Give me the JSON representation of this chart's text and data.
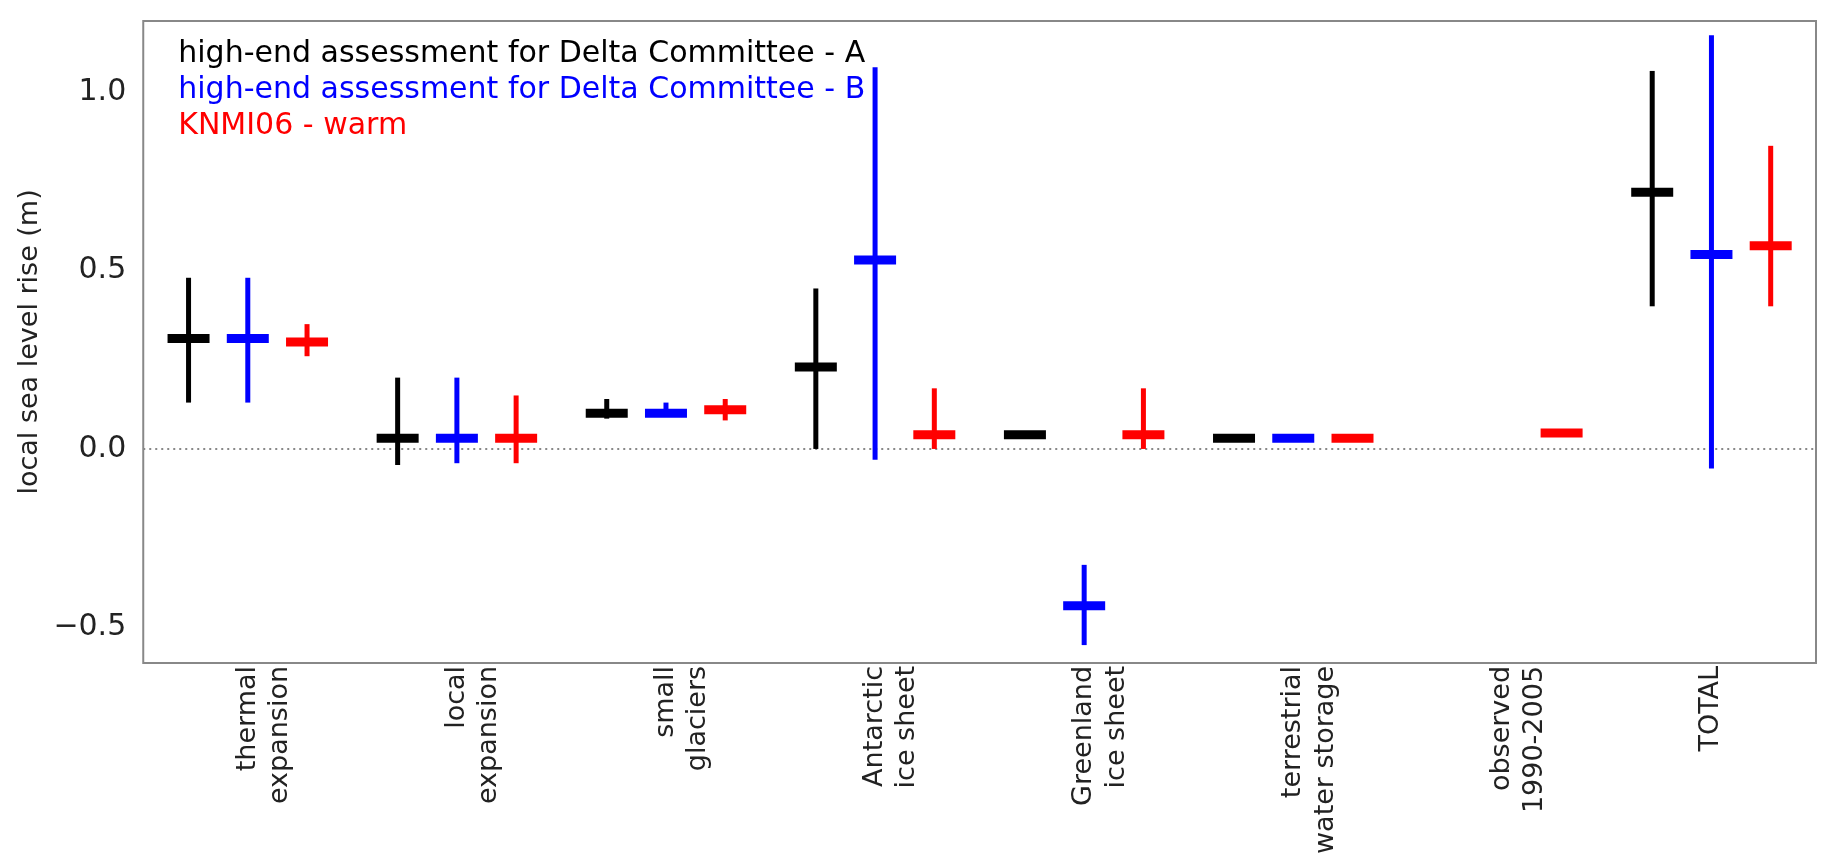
{
  "chart_data": {
    "type": "box",
    "ylabel": "local sea level rise (m)",
    "categories": [
      "thermal expansion",
      "local expansion",
      "small glaciers",
      "Antarctic ice sheet",
      "Greenland ice sheet",
      "terrestrial water storage",
      "observed 1990-2005",
      "TOTAL"
    ],
    "series": [
      {
        "name": "high-end assessment for Delta Committee - A",
        "color": "#000000",
        "boxes": [
          {
            "low": 0.13,
            "q1": 0.31,
            "median": 0.31,
            "q3": 0.31,
            "high": 0.48
          },
          {
            "low": -0.045,
            "q1": 0.03,
            "median": 0.03,
            "q3": 0.03,
            "high": 0.2
          },
          {
            "low": 0.085,
            "q1": 0.1,
            "median": 0.1,
            "q3": 0.1,
            "high": 0.14
          },
          {
            "low": 0.0,
            "q1": 0.23,
            "median": 0.23,
            "q3": 0.23,
            "high": 0.45
          },
          {
            "low": 0.04,
            "q1": 0.04,
            "median": 0.04,
            "q3": 0.04,
            "high": 0.04
          },
          {
            "low": 0.03,
            "q1": 0.03,
            "median": 0.03,
            "q3": 0.03,
            "high": 0.03
          },
          null,
          {
            "low": 0.4,
            "q1": 0.72,
            "median": 0.72,
            "q3": 0.72,
            "high": 1.06
          }
        ]
      },
      {
        "name": "high-end assessment for Delta Committee - B",
        "color": "#0000ff",
        "boxes": [
          {
            "low": 0.13,
            "q1": 0.31,
            "median": 0.31,
            "q3": 0.31,
            "high": 0.48
          },
          {
            "low": -0.04,
            "q1": 0.03,
            "median": 0.03,
            "q3": 0.03,
            "high": 0.2
          },
          {
            "low": 0.09,
            "q1": 0.1,
            "median": 0.1,
            "q3": 0.1,
            "high": 0.13
          },
          {
            "low": -0.03,
            "q1": 0.53,
            "median": 0.53,
            "q3": 0.53,
            "high": 1.07
          },
          {
            "low": -0.55,
            "q1": -0.44,
            "median": -0.44,
            "q3": -0.44,
            "high": -0.325
          },
          {
            "low": 0.03,
            "q1": 0.03,
            "median": 0.03,
            "q3": 0.03,
            "high": 0.03
          },
          null,
          {
            "low": -0.055,
            "q1": 0.545,
            "median": 0.545,
            "q3": 0.545,
            "high": 1.16
          }
        ]
      },
      {
        "name": "KNMI06 - warm",
        "color": "#ff0000",
        "boxes": [
          {
            "low": 0.26,
            "q1": 0.3,
            "median": 0.3,
            "q3": 0.3,
            "high": 0.35
          },
          {
            "low": -0.04,
            "q1": 0.03,
            "median": 0.03,
            "q3": 0.03,
            "high": 0.15
          },
          {
            "low": 0.08,
            "q1": 0.11,
            "median": 0.11,
            "q3": 0.11,
            "high": 0.14
          },
          {
            "low": 0.0,
            "q1": 0.04,
            "median": 0.04,
            "q3": 0.04,
            "high": 0.17
          },
          {
            "low": 0.0,
            "q1": 0.04,
            "median": 0.04,
            "q3": 0.04,
            "high": 0.17
          },
          {
            "low": 0.03,
            "q1": 0.03,
            "median": 0.03,
            "q3": 0.03,
            "high": 0.03
          },
          {
            "low": 0.045,
            "q1": 0.045,
            "median": 0.045,
            "q3": 0.045,
            "high": 0.045
          },
          {
            "low": 0.4,
            "q1": 0.57,
            "median": 0.57,
            "q3": 0.57,
            "high": 0.85
          }
        ]
      }
    ],
    "ylim": [
      -0.6,
      1.2
    ],
    "yticks": [
      {
        "value": -0.5,
        "label": "−0.5"
      },
      {
        "value": 0,
        "label": "0.0"
      },
      {
        "value": 0.5,
        "label": "0.5"
      },
      {
        "value": 1.0,
        "label": "1.0"
      }
    ],
    "ref_lines": [
      {
        "axis": "y",
        "value": 0,
        "line_style": "dotted",
        "color": "#888888"
      }
    ],
    "grid": false
  }
}
